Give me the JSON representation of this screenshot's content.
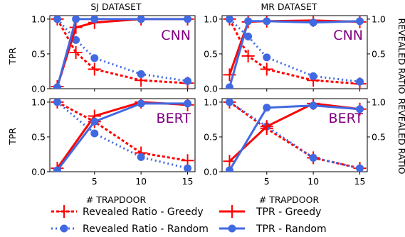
{
  "chart_data": [
    {
      "type": "line",
      "title": "SJ DATASET",
      "annotation": "CNN",
      "xlabel": "",
      "ylabel": "TPR",
      "x": [
        1,
        3,
        5,
        10,
        15
      ],
      "xticks": [
        5,
        10,
        15
      ],
      "xlim": [
        0.2,
        15.8
      ],
      "ylim": [
        0,
        1.05
      ],
      "yticks_left": [
        "0.0",
        "0.5",
        "1.0"
      ],
      "series": [
        {
          "name": "Revealed Ratio - Greedy",
          "axis": "right",
          "values": [
            1.0,
            0.52,
            0.28,
            0.12,
            0.08
          ]
        },
        {
          "name": "Revealed Ratio - Random",
          "axis": "right",
          "values": [
            1.0,
            0.7,
            0.44,
            0.21,
            0.11
          ]
        },
        {
          "name": "TPR - Greedy",
          "axis": "left",
          "values": [
            0.03,
            0.88,
            0.95,
            1.0,
            1.0
          ]
        },
        {
          "name": "TPR - Random",
          "axis": "left",
          "values": [
            0.02,
            1.0,
            1.0,
            1.0,
            1.0
          ]
        }
      ]
    },
    {
      "type": "line",
      "title": "MR DATASET",
      "annotation": "CNN",
      "xlabel": "",
      "ylabel": "REVEALED RATIO",
      "x": [
        1,
        3,
        5,
        10,
        15
      ],
      "xticks": [
        5,
        10,
        15
      ],
      "xlim": [
        0.2,
        15.8
      ],
      "ylim": [
        0,
        1.05
      ],
      "yticks_left": [
        "0.0",
        "0.5",
        "1.0"
      ],
      "yticks_right": [
        "0.5",
        "1.0"
      ],
      "series": [
        {
          "name": "Revealed Ratio - Greedy",
          "axis": "right",
          "values": [
            1.0,
            0.47,
            0.28,
            0.12,
            0.07
          ]
        },
        {
          "name": "Revealed Ratio - Random",
          "axis": "right",
          "values": [
            1.0,
            0.75,
            0.45,
            0.18,
            0.1
          ]
        },
        {
          "name": "TPR - Greedy",
          "axis": "left",
          "values": [
            0.2,
            0.96,
            0.97,
            0.98,
            0.96
          ]
        },
        {
          "name": "TPR - Random",
          "axis": "left",
          "values": [
            0.02,
            0.97,
            0.97,
            0.95,
            0.97
          ]
        }
      ]
    },
    {
      "type": "line",
      "title": "",
      "annotation": "BERT",
      "xlabel": "# TRAPDOOR",
      "ylabel": "TPR",
      "x": [
        1,
        5,
        10,
        15
      ],
      "xticks": [
        5,
        10,
        15
      ],
      "xticklabels": [
        "5",
        "10",
        "15"
      ],
      "xlim": [
        0.2,
        15.8
      ],
      "ylim": [
        0,
        1.05
      ],
      "yticks_left": [
        "0.0",
        "0.5",
        "1.0"
      ],
      "series": [
        {
          "name": "Revealed Ratio - Greedy",
          "axis": "right",
          "values": [
            1.0,
            0.72,
            0.27,
            0.16
          ]
        },
        {
          "name": "Revealed Ratio - Random",
          "axis": "right",
          "values": [
            1.0,
            0.55,
            0.21,
            0.05
          ]
        },
        {
          "name": "TPR - Greedy",
          "axis": "left",
          "values": [
            0.05,
            0.8,
            1.0,
            0.96
          ]
        },
        {
          "name": "TPR - Random",
          "axis": "left",
          "values": [
            0.02,
            0.72,
            0.98,
            0.98
          ]
        }
      ]
    },
    {
      "type": "line",
      "title": "",
      "annotation": "BERT",
      "xlabel": "# TRAPDOOR",
      "ylabel": "REVEALED RATIO",
      "x": [
        1,
        5,
        10,
        15
      ],
      "xticks": [
        5,
        10,
        15
      ],
      "xticklabels": [
        "5",
        "10",
        "15"
      ],
      "xlim": [
        0.2,
        15.8
      ],
      "ylim": [
        0,
        1.05
      ],
      "yticks_left": [
        "0.0",
        "0.5",
        "1.0"
      ],
      "yticks_right": [
        "0.5",
        "1.0"
      ],
      "series": [
        {
          "name": "Revealed Ratio - Greedy",
          "axis": "right",
          "values": [
            1.0,
            0.62,
            0.2,
            0.05
          ]
        },
        {
          "name": "Revealed Ratio - Random",
          "axis": "right",
          "values": [
            1.0,
            0.65,
            0.2,
            0.05
          ]
        },
        {
          "name": "TPR - Greedy",
          "axis": "left",
          "values": [
            0.15,
            0.65,
            0.98,
            0.9
          ]
        },
        {
          "name": "TPR - Random",
          "axis": "left",
          "values": [
            0.02,
            0.92,
            0.95,
            0.9
          ]
        }
      ]
    }
  ],
  "colors": {
    "greedy": "#ff0000",
    "random": "#4169e1",
    "annotation": "#800080"
  },
  "legend": {
    "items": [
      {
        "label": "Revealed Ratio - Greedy",
        "style": "dashed-plus",
        "color": "#ff0000"
      },
      {
        "label": "TPR - Greedy",
        "style": "solid-plus",
        "color": "#ff0000"
      },
      {
        "label": "Revealed Ratio - Random",
        "style": "dotted-circle",
        "color": "#4169e1"
      },
      {
        "label": "TPR - Random",
        "style": "solid-circle",
        "color": "#4169e1"
      }
    ]
  }
}
